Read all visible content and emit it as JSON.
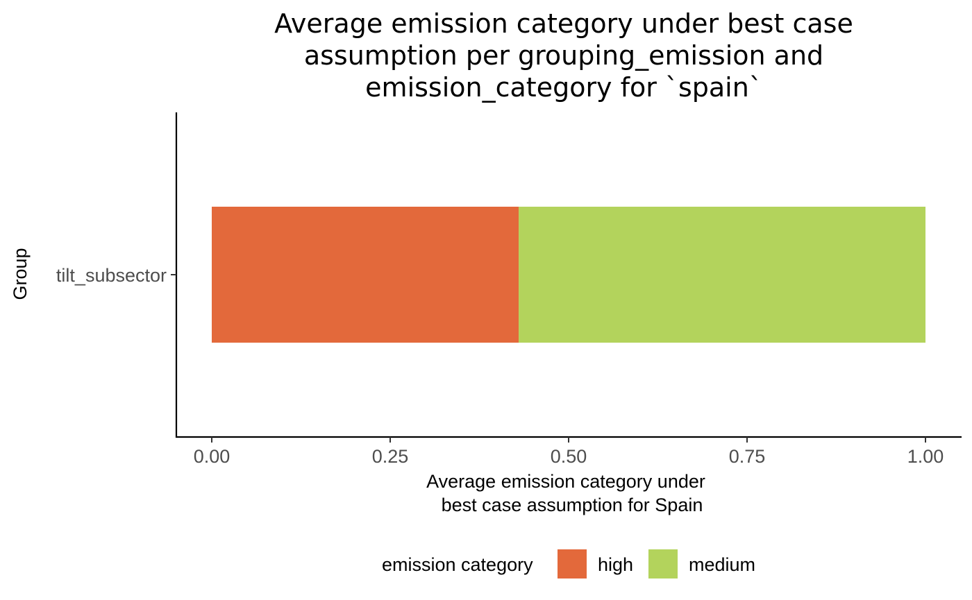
{
  "chart_data": {
    "type": "bar",
    "orientation": "horizontal",
    "stacked": true,
    "title_lines": [
      "Average emission category under best case",
      "assumption per grouping_emission and",
      "emission_category for `spain`"
    ],
    "xlabel_lines": [
      "Average emission category under",
      "best case assumption for Spain"
    ],
    "ylabel": "Group",
    "categories": [
      "tilt_subsector"
    ],
    "series": [
      {
        "name": "high",
        "values": [
          0.43
        ],
        "color": "#E3693B"
      },
      {
        "name": "medium",
        "values": [
          0.57
        ],
        "color": "#B3D35C"
      }
    ],
    "xlim": [
      0,
      1
    ],
    "xticks": [
      0,
      0.25,
      0.5,
      0.75,
      1
    ],
    "xtick_labels": [
      "0.00",
      "0.25",
      "0.50",
      "0.75",
      "1.00"
    ],
    "grid": false,
    "legend": {
      "title": "emission category",
      "position": "bottom"
    }
  }
}
